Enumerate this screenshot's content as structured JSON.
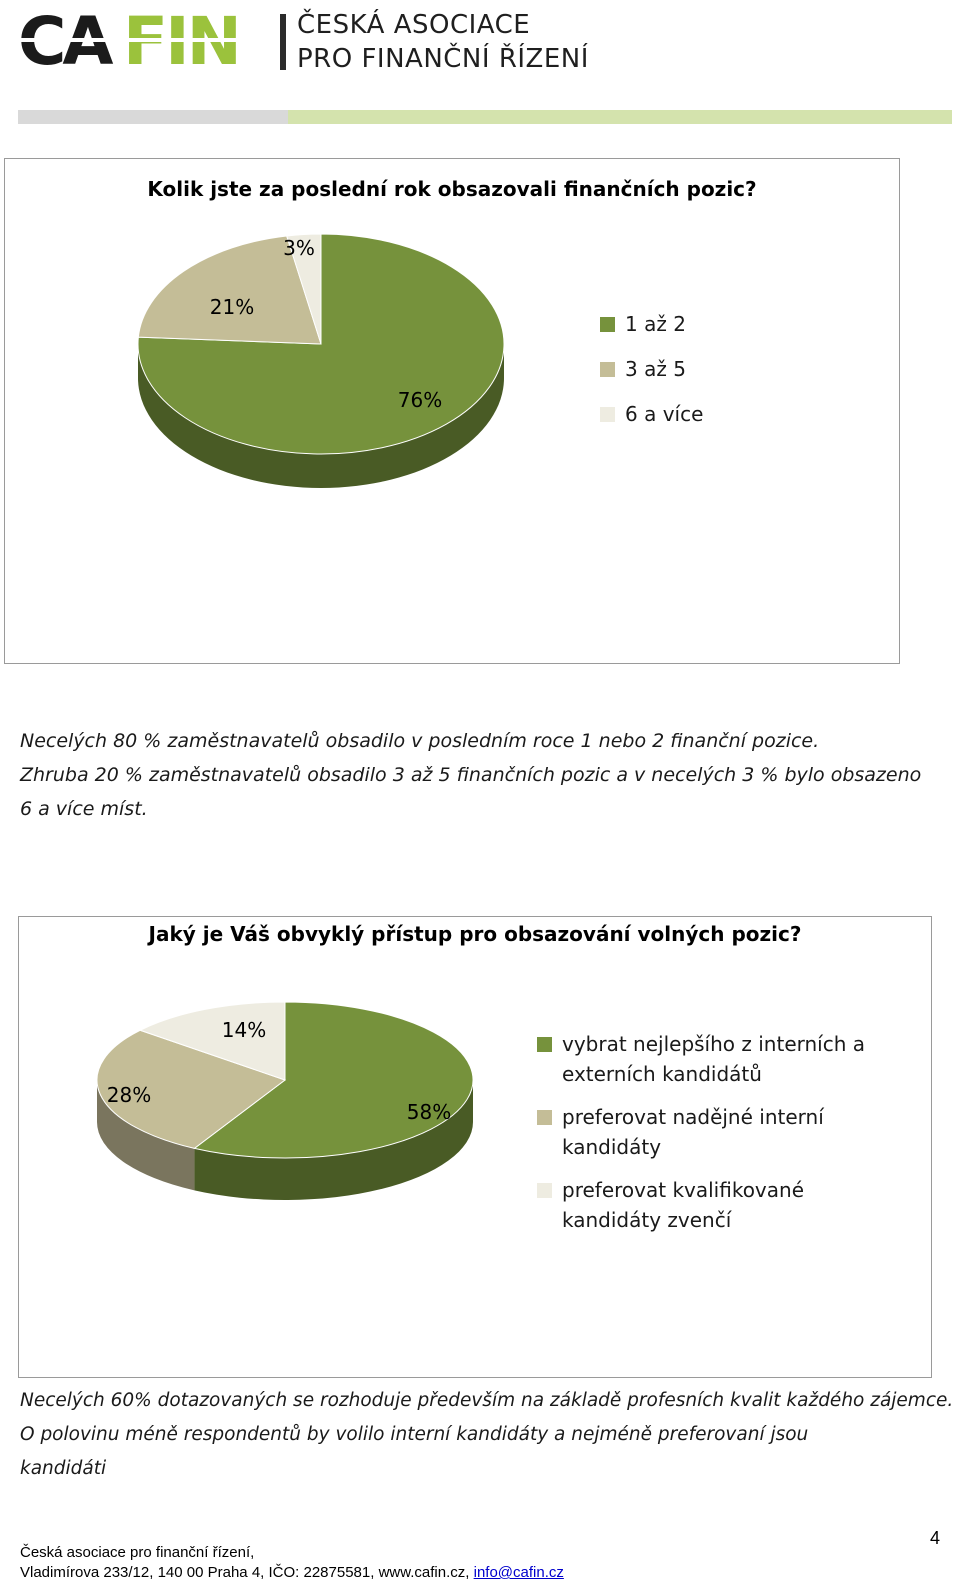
{
  "header": {
    "logo_text": "CAFIN",
    "org_line1": "ČESKÁ ASOCIACE",
    "org_line2": "PRO FINANČNÍ ŘÍZENÍ"
  },
  "chart_data": [
    {
      "type": "pie",
      "title": "Kolik jste za poslední rok obsazovali finančních pozic?",
      "categories": [
        "1 až 2",
        "3 až 5",
        "6 a více"
      ],
      "values": [
        76,
        21,
        3
      ],
      "data_labels": [
        "76%",
        "21%",
        "3%"
      ],
      "colors": [
        "#76923c",
        "#c4bd97",
        "#eeece1"
      ],
      "legend_position": "right"
    },
    {
      "type": "pie",
      "title": "Jaký je Váš obvyklý přístup pro obsazování volných pozic?",
      "categories": [
        "vybrat nejlepšího z interních a externích kandidátů",
        "preferovat nadějné interní kandidáty",
        "preferovat kvalifikované kandidáty zvenčí"
      ],
      "values": [
        58,
        28,
        14
      ],
      "data_labels": [
        "58%",
        "28%",
        "14%"
      ],
      "colors": [
        "#76923c",
        "#c4bd97",
        "#eeece1"
      ],
      "legend_position": "right"
    }
  ],
  "paragraphs": {
    "p1": "Necelých 80 % zaměstnavatelů obsadilo v posledním roce 1 nebo 2 finanční pozice.\nZhruba 20 % zaměstnavatelů obsadilo 3 až 5 finančních pozic a v necelých 3 % bylo obsazeno\n6 a více míst.",
    "p2": "Necelých 60% dotazovaných se rozhoduje především na základě profesních kvalit každého zájemce.\nO polovinu méně respondentů by volilo interní kandidáty a nejméně preferovaní jsou\nkandidáti"
  },
  "footer": {
    "line1": "Česká asociace pro finanční řízení,",
    "line2": "Vladimírova 233/12, 140 00 Praha 4, IČO: 22875581, www.cafin.cz, ",
    "email": "info@cafin.cz",
    "page_number": "4"
  }
}
